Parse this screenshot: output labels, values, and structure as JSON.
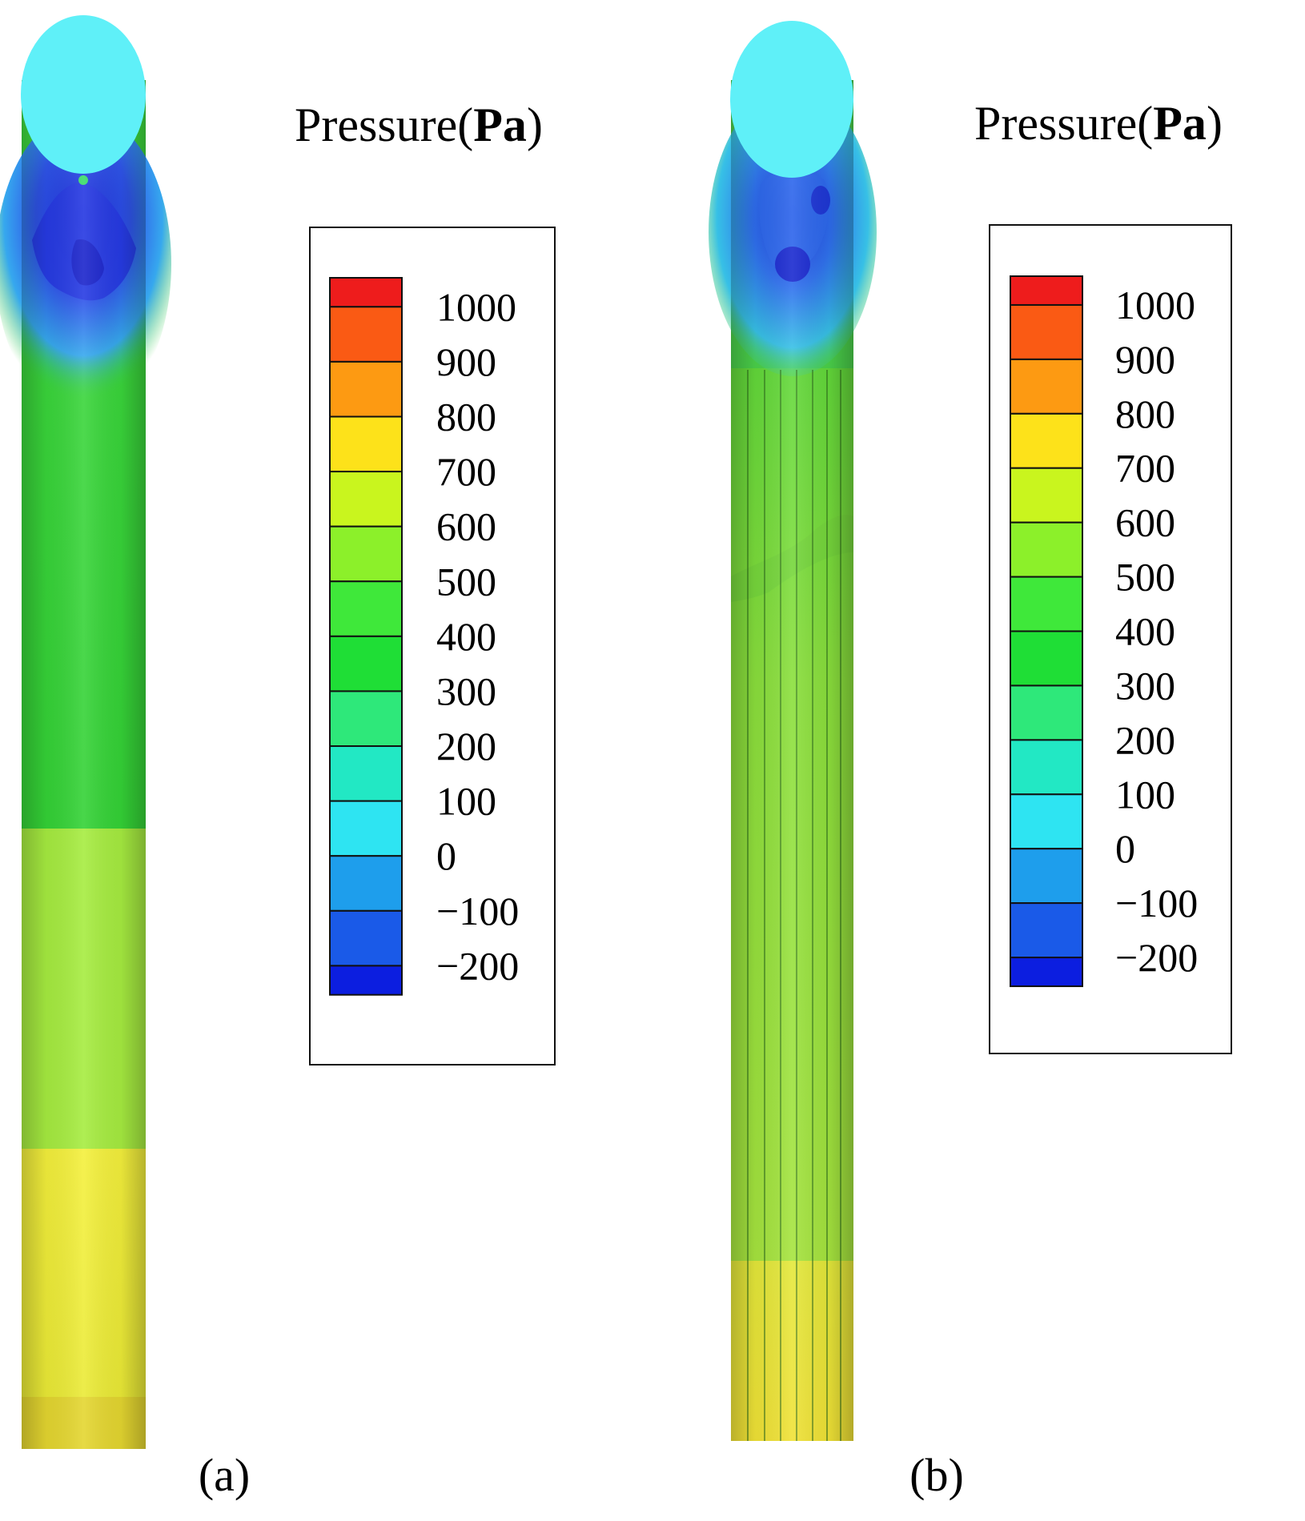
{
  "legend": {
    "title": "Pressure(Pa)",
    "title_main": "Pressure",
    "title_unit": "Pa",
    "tick_labels": [
      "1000",
      "900",
      "800",
      "700",
      "600",
      "500",
      "400",
      "300",
      "200",
      "100",
      "0",
      "−100",
      "−200"
    ],
    "levels": [
      1000,
      900,
      800,
      700,
      600,
      500,
      400,
      300,
      200,
      100,
      0,
      -100,
      -200
    ],
    "colors": [
      "#ee1c1c",
      "#fa5a14",
      "#fd9a12",
      "#fde21a",
      "#c9f51e",
      "#8cf02a",
      "#3fe83a",
      "#1fde36",
      "#2ee87a",
      "#22e8c4",
      "#2ee4f2",
      "#1e9eec",
      "#1a5ae8",
      "#0c1ee0"
    ]
  },
  "panels": [
    {
      "caption": "(a)",
      "colors": {
        "bubble": "#5ff0f8",
        "low_core": "#2a3be6",
        "low_mid": "#2b6cf0",
        "low_edge": "#38c8ea",
        "body": "#3ad43a",
        "lower_mid": "#a6ec40",
        "bottom": "#f2f038"
      }
    },
    {
      "caption": "(b)",
      "colors": {
        "bubble": "#5ff0f8",
        "low_core": "#2a3be6",
        "low_mid": "#2f7ff0",
        "low_edge": "#38c8ea",
        "body": "#8adf3c",
        "bottom": "#eeea3a"
      }
    }
  ]
}
